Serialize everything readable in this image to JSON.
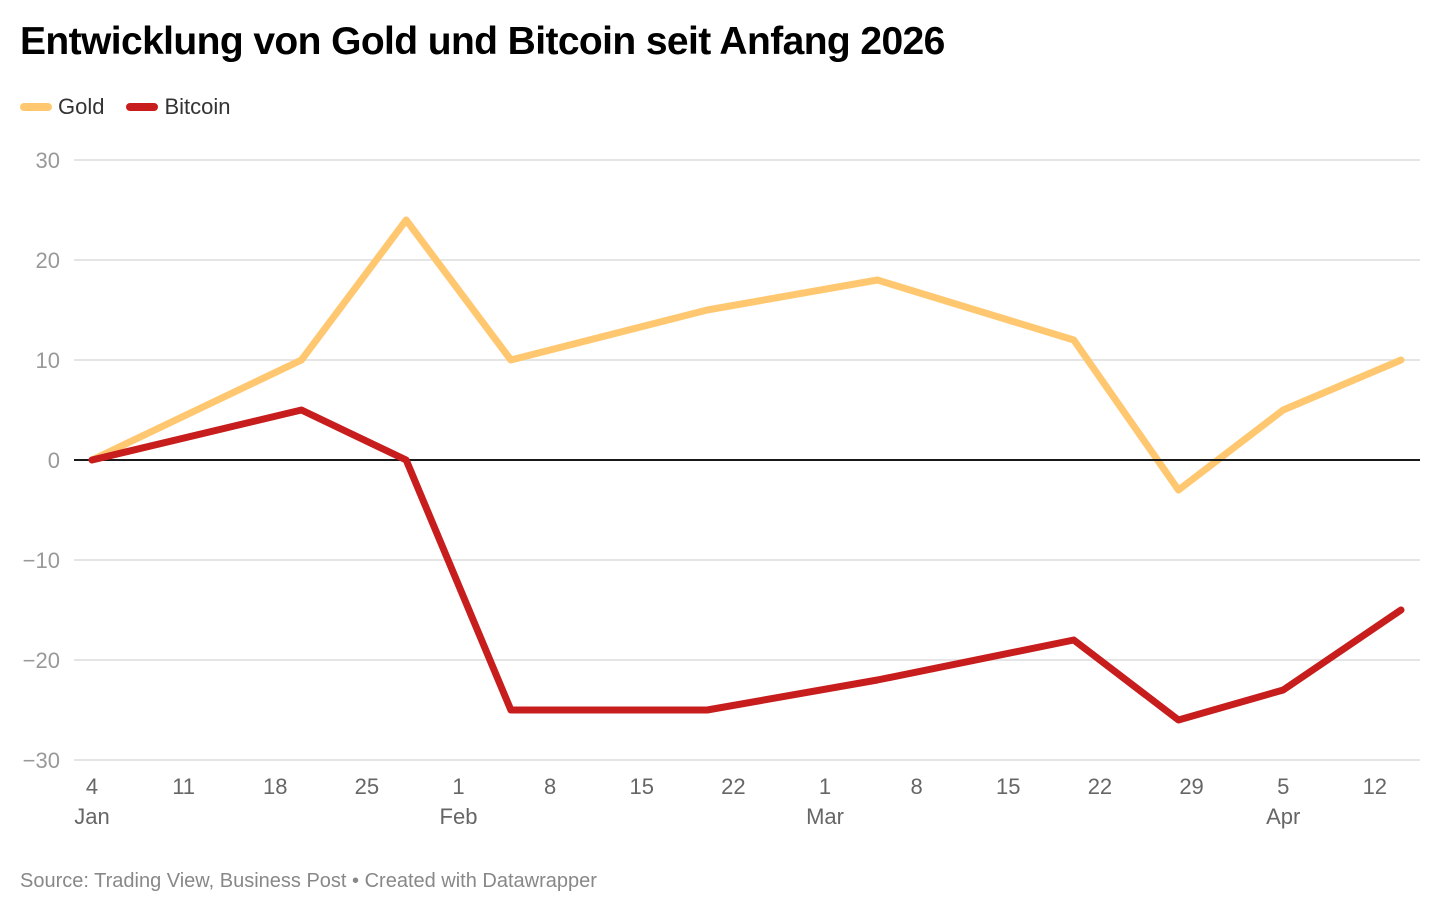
{
  "chart_data": {
    "type": "line",
    "title": "Entwicklung von Gold und Bitcoin seit Anfang 2026",
    "xlabel": "",
    "ylabel": "",
    "ylim": [
      -30,
      30
    ],
    "yticks": [
      30,
      20,
      10,
      0,
      -10,
      -20,
      -30
    ],
    "ytick_labels": [
      "30",
      "20",
      "10",
      "0",
      "−10",
      "−20",
      "−30"
    ],
    "xlim_days": [
      0,
      102
    ],
    "xticks": [
      {
        "day": 0,
        "label": "4",
        "month": "Jan"
      },
      {
        "day": 7,
        "label": "11",
        "month": ""
      },
      {
        "day": 14,
        "label": "18",
        "month": ""
      },
      {
        "day": 21,
        "label": "25",
        "month": ""
      },
      {
        "day": 28,
        "label": "1",
        "month": "Feb"
      },
      {
        "day": 35,
        "label": "8",
        "month": ""
      },
      {
        "day": 42,
        "label": "15",
        "month": ""
      },
      {
        "day": 49,
        "label": "22",
        "month": ""
      },
      {
        "day": 56,
        "label": "1",
        "month": "Mar"
      },
      {
        "day": 63,
        "label": "8",
        "month": ""
      },
      {
        "day": 70,
        "label": "15",
        "month": ""
      },
      {
        "day": 77,
        "label": "22",
        "month": ""
      },
      {
        "day": 84,
        "label": "29",
        "month": ""
      },
      {
        "day": 91,
        "label": "5",
        "month": "Apr"
      },
      {
        "day": 98,
        "label": "12",
        "month": ""
      }
    ],
    "x": [
      "2026-01-04",
      "2026-01-20",
      "2026-01-28",
      "2026-02-05",
      "2026-02-20",
      "2026-03-05",
      "2026-03-20",
      "2026-03-28",
      "2026-04-05",
      "2026-04-14"
    ],
    "x_days": [
      0,
      16,
      24,
      32,
      47,
      60,
      75,
      83,
      91,
      100
    ],
    "series": [
      {
        "name": "Gold",
        "color": "#ffc870",
        "values": [
          0,
          10,
          24,
          10,
          15,
          18,
          12,
          -3,
          5,
          10
        ]
      },
      {
        "name": "Bitcoin",
        "color": "#c71e1d",
        "values": [
          0,
          5,
          0,
          -25,
          -25,
          -22,
          -18,
          -26,
          -23,
          -15
        ]
      }
    ],
    "grid": true,
    "zero_line": true,
    "legend_position": "top-left"
  },
  "legend": [
    {
      "label": "Gold",
      "color": "#ffc870"
    },
    {
      "label": "Bitcoin",
      "color": "#c71e1d"
    }
  ],
  "footer": {
    "text": "Source: Trading View, Business Post • Created with Datawrapper"
  }
}
